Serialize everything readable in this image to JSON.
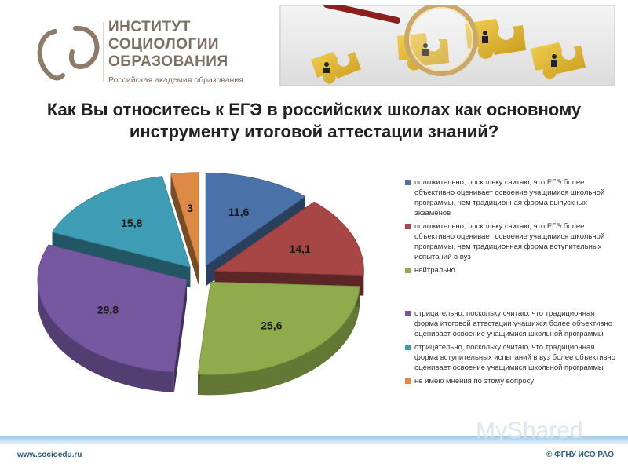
{
  "header": {
    "logo_line1": "ИНСТИТУТ",
    "logo_line2": "СОЦИОЛОГИИ",
    "logo_line3": "ОБРАЗОВАНИЯ",
    "logo_sub": "Российская академия образования"
  },
  "title_line1": "Как Вы относитесь к ЕГЭ в российских школах как основному",
  "title_line2": "инструменту итоговой аттестации знаний?",
  "chart_data": {
    "type": "pie",
    "values": [
      11.6,
      14.1,
      25.6,
      29.8,
      15.8,
      3
    ],
    "value_labels": [
      "11,6",
      "14,1",
      "25,6",
      "29,8",
      "15,8",
      "3"
    ],
    "categories": [
      "положительно, поскольку считаю, что ЕГЭ более объективно оценивает освоение учащимися школьной программы, чем традиционная форма выпускных экзаменов",
      "положительно, поскольку считаю, что ЕГЭ более объективно оценивает освоение учащимися школьной программы, чем традиционная форма вступительных испытаний в вуз",
      "нейтрально",
      "отрицательно, поскольку считаю, что традиционная форма итоговой аттестации учащихся более объективно оценивает освоение учащимися школьной программы",
      "отрицательно, поскольку считаю, что традиционная форма вступительных испытаний в вуз более объективно оценивает освоение учащимися школьной программы",
      "не имею мнения по этому вопросу"
    ],
    "colors": [
      "#4a72a8",
      "#a84545",
      "#8fab4c",
      "#7558a0",
      "#3e9cb5",
      "#dc8a45"
    ],
    "legend_position": "right",
    "style": "3d exploded pie"
  },
  "footer": {
    "left": "www.socioedu.ru",
    "right": "© ФГНУ ИСО РАО"
  },
  "watermark": "MyShared"
}
